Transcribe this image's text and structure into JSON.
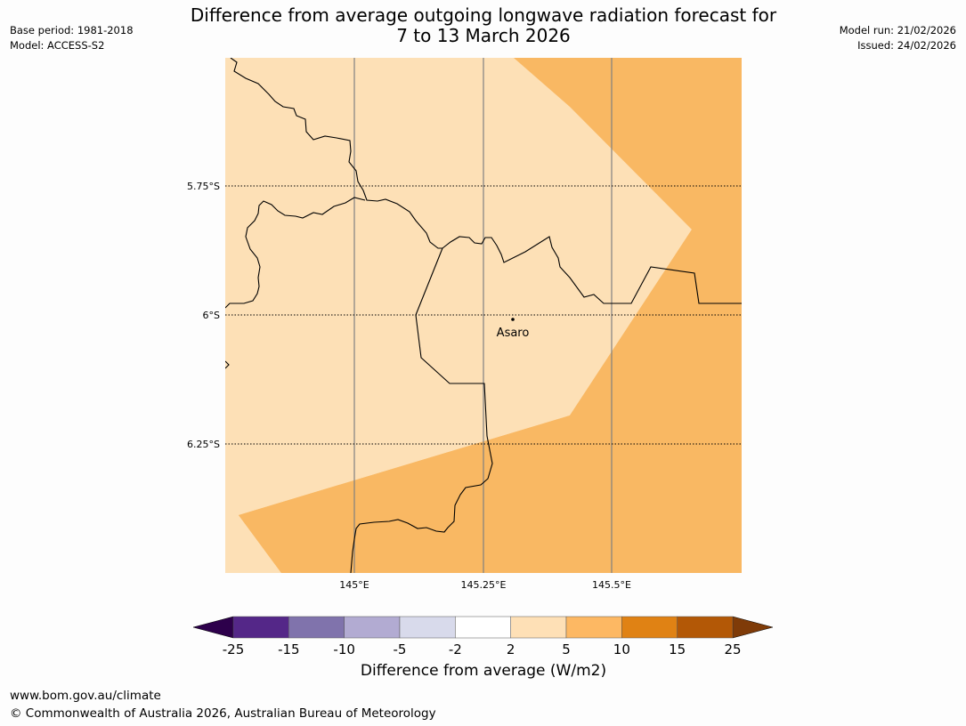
{
  "title": {
    "line1": "Difference from average outgoing longwave radiation forecast for",
    "line2": "7 to 13 March 2026"
  },
  "meta": {
    "base_period": "Base period: 1981-2018",
    "model": "Model: ACCESS-S2",
    "model_run": "Model run: 21/02/2026",
    "issued": "Issued: 24/02/2026"
  },
  "map": {
    "lat_labels": [
      "5.75°S",
      "6°S",
      "6.25°S"
    ],
    "lon_labels": [
      "145°E",
      "145.25°E",
      "145.5°E"
    ],
    "place": "Asaro",
    "colors": {
      "light_orange": "#fde0b6",
      "medium_orange": "#f9b863",
      "gridline": "#808080",
      "border": "#000000"
    }
  },
  "colorbar": {
    "title": "Difference from average (W/m2)",
    "tick_labels": [
      "-25",
      "-15",
      "-10",
      "-5",
      "-2",
      "2",
      "5",
      "10",
      "15",
      "25"
    ],
    "extend_low_color": "#2d004b",
    "extend_high_color": "#7f3b08",
    "colors": [
      "#542788",
      "#8073ac",
      "#b2abd2",
      "#d8daeb",
      "#ffffff",
      "#fee0b6",
      "#fdb863",
      "#e08214",
      "#b35806"
    ]
  },
  "footer": {
    "url": "www.bom.gov.au/climate",
    "copyright": "© Commonwealth of Australia 2026, Australian Bureau of Meteorology"
  }
}
